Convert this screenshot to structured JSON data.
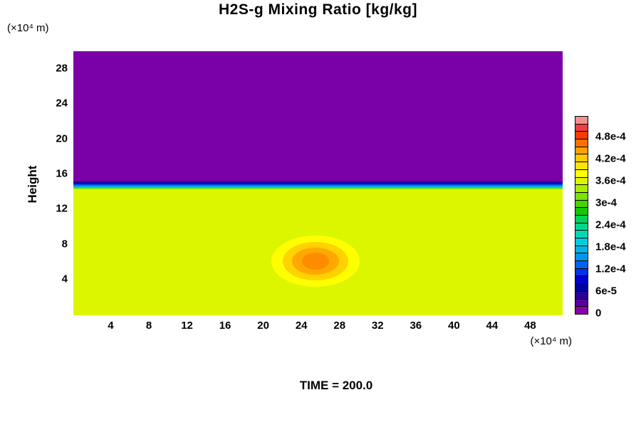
{
  "title": "H2S-g Mixing Ratio [kg/kg]",
  "time_label": "TIME = 200.0",
  "y_axis": {
    "label": "Height",
    "unit": "(×10⁴  m)",
    "ticks": [
      4,
      8,
      12,
      16,
      20,
      24,
      28
    ]
  },
  "x_axis": {
    "unit": "(×10⁴  m)",
    "ticks": [
      4,
      8,
      12,
      16,
      20,
      24,
      28,
      32,
      36,
      40,
      44,
      48
    ]
  },
  "colorbar": {
    "tick_labels": [
      "0",
      "6e-5",
      "1.2e-4",
      "1.8e-4",
      "2.4e-4",
      "3e-4",
      "3.6e-4",
      "4.2e-4",
      "4.8e-4"
    ],
    "cell_colors_bottom_to_top": [
      "#8A00A8",
      "#5A00A0",
      "#2A0096",
      "#0000A0",
      "#0000D2",
      "#0032E8",
      "#0064F0",
      "#0096F0",
      "#00B4E6",
      "#00CCDC",
      "#00D8B4",
      "#00D88C",
      "#00D25A",
      "#14C800",
      "#46D400",
      "#78E200",
      "#AAEE00",
      "#DCF600",
      "#FFFF00",
      "#FFE400",
      "#FFC800",
      "#FFA000",
      "#FF7000",
      "#F83C00",
      "#F04040",
      "#F29090"
    ]
  },
  "chart_data": {
    "type": "heatmap",
    "title": "H2S-g Mixing Ratio [kg/kg]",
    "xlabel": "(×10⁴ m)",
    "ylabel": "Height (×10⁴ m)",
    "xlim": [
      0,
      51.5
    ],
    "ylim": [
      0,
      30
    ],
    "x_ticks": [
      4,
      8,
      12,
      16,
      20,
      24,
      28,
      32,
      36,
      40,
      44,
      48
    ],
    "y_ticks": [
      4,
      8,
      12,
      16,
      20,
      24,
      28
    ],
    "time": 200.0,
    "legend_position": "right",
    "grid": false,
    "colorbar_range": [
      0,
      0.00052
    ],
    "colorbar_tick_values": [
      0,
      6e-05,
      0.00012,
      0.00018,
      0.00024,
      0.0003,
      0.00036,
      0.00042,
      0.00048
    ],
    "regions": [
      {
        "name": "upper-layer",
        "y_range": [
          15.3,
          30
        ],
        "value": 0,
        "color": "#7A00A8"
      },
      {
        "name": "interface-transition",
        "y_range": [
          14.2,
          15.3
        ],
        "value_range": [
          0.00035,
          0
        ]
      },
      {
        "name": "lower-layer",
        "y_range": [
          0,
          14.2
        ],
        "value": 0.00035,
        "color": "#DCF600"
      }
    ],
    "plume": {
      "center_x": 25.5,
      "center_y": 6.0,
      "contours": [
        {
          "value": 0.00036,
          "rx": 4.63,
          "ry": 2.92,
          "color": "#FFFF00"
        },
        {
          "value": 0.0004,
          "rx": 3.44,
          "ry": 2.19,
          "color": "#FFD200"
        },
        {
          "value": 0.00042,
          "rx": 2.47,
          "ry": 1.54,
          "color": "#FFA800"
        },
        {
          "value": 0.00044,
          "rx": 1.42,
          "ry": 0.97,
          "color": "#FF8C00"
        }
      ]
    }
  }
}
